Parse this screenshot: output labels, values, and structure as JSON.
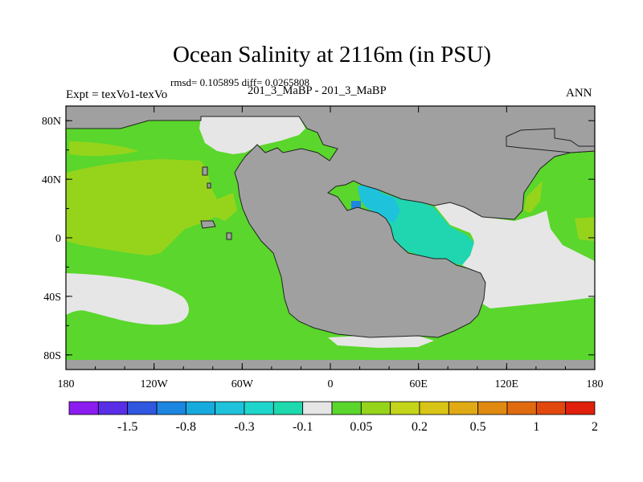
{
  "title": "Ocean Salinity at 2116m (in PSU)",
  "stats": "rmsd= 0.105895 diff= 0.0265808",
  "runs": "201_3_MaBP - 201_3_MaBP",
  "expt": "Expt = texVo1-texVo",
  "season": "ANN",
  "x_ticks": [
    "180",
    "120W",
    "60W",
    "0",
    "60E",
    "120E",
    "180"
  ],
  "y_ticks": [
    "80N",
    "40N",
    "0",
    "40S",
    "80S"
  ],
  "legend": {
    "colors": [
      "#8c1cf0",
      "#5a2ee6",
      "#2f57e0",
      "#1c86e0",
      "#17aadc",
      "#1ec3db",
      "#1fd6cc",
      "#1ed9ad",
      "#e6e6e6",
      "#5ad62c",
      "#96d41c",
      "#c3d41a",
      "#d8c416",
      "#e0aa14",
      "#e08a12",
      "#e06a10",
      "#e0480e",
      "#e0200c"
    ],
    "labels": [
      "-1.5",
      "-0.8",
      "-0.3",
      "-0.1",
      "0.05",
      "0.2",
      "0.5",
      "1",
      "2"
    ]
  },
  "colors": {
    "land": "#a0a0a0",
    "near_zero": "#e6e6e6",
    "positive": "#5ad62c",
    "positive_mid": "#96d41c",
    "negative_teal": "#1fd6b0",
    "negative_cyan": "#1ec3db",
    "negative_blue": "#1c86e0"
  }
}
